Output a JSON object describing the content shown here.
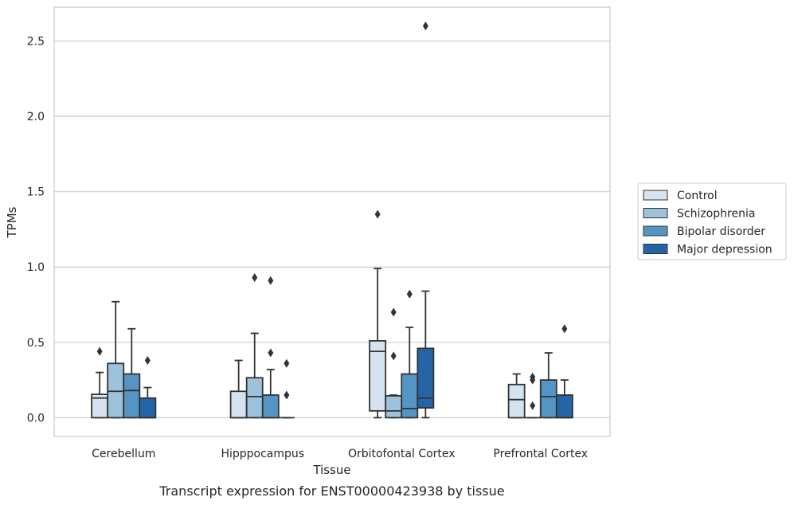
{
  "chart_data": {
    "type": "box",
    "title": "Transcript expression for ENST00000423938 by tissue",
    "xlabel": "Tissue",
    "ylabel": "TPMs",
    "ylim": [
      -0.125,
      2.725
    ],
    "yticks": [
      0.0,
      0.5,
      1.0,
      1.5,
      2.0,
      2.5
    ],
    "ytick_labels": [
      "0.0",
      "0.5",
      "1.0",
      "1.5",
      "2.0",
      "2.5"
    ],
    "grid": "horizontal",
    "legend_position": "right",
    "categories": [
      "Cerebellum",
      "Hipppocampus",
      "Orbitofontal Cortex",
      "Prefrontal Cortex"
    ],
    "series": [
      {
        "name": "Control",
        "color": "#d5e3f1",
        "boxes": [
          {
            "q1": 0.0,
            "median": 0.13,
            "q3": 0.155,
            "whisker_low": 0.0,
            "whisker_high": 0.3,
            "outliers": [
              0.44
            ]
          },
          {
            "q1": 0.0,
            "median": 0.0,
            "q3": 0.175,
            "whisker_low": 0.0,
            "whisker_high": 0.38,
            "outliers": []
          },
          {
            "q1": 0.045,
            "median": 0.44,
            "q3": 0.51,
            "whisker_low": 0.0,
            "whisker_high": 0.99,
            "outliers": [
              1.35
            ]
          },
          {
            "q1": 0.0,
            "median": 0.12,
            "q3": 0.22,
            "whisker_low": 0.0,
            "whisker_high": 0.29,
            "outliers": []
          }
        ]
      },
      {
        "name": "Schizophrenia",
        "color": "#9cc3db",
        "boxes": [
          {
            "q1": 0.0,
            "median": 0.175,
            "q3": 0.36,
            "whisker_low": 0.0,
            "whisker_high": 0.77,
            "outliers": []
          },
          {
            "q1": 0.0,
            "median": 0.14,
            "q3": 0.265,
            "whisker_low": 0.0,
            "whisker_high": 0.56,
            "outliers": [
              0.93
            ]
          },
          {
            "q1": 0.0,
            "median": 0.045,
            "q3": 0.145,
            "whisker_low": 0.0,
            "whisker_high": 0.15,
            "outliers": [
              0.41,
              0.7
            ]
          },
          {
            "q1": 0.0,
            "median": 0.0,
            "q3": 0.0,
            "whisker_low": 0.0,
            "whisker_high": 0.0,
            "outliers": [
              0.08,
              0.25,
              0.27
            ]
          }
        ]
      },
      {
        "name": "Bipolar disorder",
        "color": "#5595c3",
        "boxes": [
          {
            "q1": 0.0,
            "median": 0.18,
            "q3": 0.29,
            "whisker_low": 0.0,
            "whisker_high": 0.59,
            "outliers": []
          },
          {
            "q1": 0.0,
            "median": 0.0,
            "q3": 0.15,
            "whisker_low": 0.0,
            "whisker_high": 0.32,
            "outliers": [
              0.43,
              0.91
            ]
          },
          {
            "q1": 0.0,
            "median": 0.06,
            "q3": 0.29,
            "whisker_low": 0.0,
            "whisker_high": 0.6,
            "outliers": [
              0.82
            ]
          },
          {
            "q1": 0.0,
            "median": 0.14,
            "q3": 0.25,
            "whisker_low": 0.0,
            "whisker_high": 0.43,
            "outliers": []
          }
        ]
      },
      {
        "name": "Major depression",
        "color": "#2565a6",
        "boxes": [
          {
            "q1": 0.0,
            "median": 0.0,
            "q3": 0.13,
            "whisker_low": 0.0,
            "whisker_high": 0.2,
            "outliers": [
              0.38
            ]
          },
          {
            "q1": 0.0,
            "median": 0.0,
            "q3": 0.0,
            "whisker_low": 0.0,
            "whisker_high": 0.0,
            "outliers": [
              0.15,
              0.36
            ]
          },
          {
            "q1": 0.065,
            "median": 0.13,
            "q3": 0.46,
            "whisker_low": 0.0,
            "whisker_high": 0.84,
            "outliers": [
              2.6
            ]
          },
          {
            "q1": 0.0,
            "median": 0.0,
            "q3": 0.15,
            "whisker_low": 0.0,
            "whisker_high": 0.25,
            "outliers": [
              0.59
            ]
          }
        ]
      }
    ]
  }
}
